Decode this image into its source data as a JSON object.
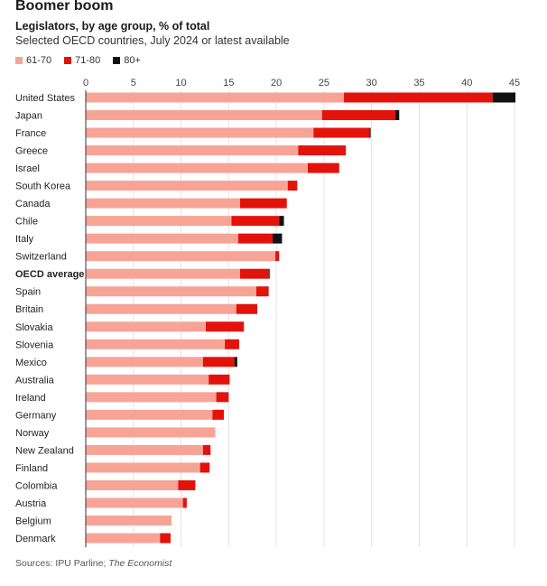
{
  "title": "Boomer boom",
  "subtitle": "Legislators, by age group, % of total",
  "subtitle2": "Selected OECD countries, July 2024 or latest available",
  "source_prefix": "Sources: IPU Parline; ",
  "source_italic": "The Economist",
  "colors": {
    "61-70": "#f7a497",
    "71-80": "#e3120b",
    "80+": "#111111"
  },
  "chart_data": {
    "type": "bar",
    "orientation": "horizontal",
    "stacked": true,
    "title": "Legislators, by age group, % of total",
    "xlabel": "",
    "ylabel": "",
    "xlim": [
      0,
      45
    ],
    "xticks": [
      "0",
      "5",
      "10",
      "15",
      "20",
      "25",
      "30",
      "35",
      "40",
      "45"
    ],
    "grid": true,
    "legend_placement": "top-left",
    "legend": [
      "61-70",
      "71-80",
      "80+"
    ],
    "categories": [
      "United States",
      "Japan",
      "France",
      "Greece",
      "Israel",
      "South Korea",
      "Canada",
      "Chile",
      "Italy",
      "Switzerland",
      "OECD average",
      "Spain",
      "Britain",
      "Slovakia",
      "Slovenia",
      "Mexico",
      "Australia",
      "Ireland",
      "Germany",
      "Norway",
      "New Zealand",
      "Finland",
      "Colombia",
      "Austria",
      "Belgium",
      "Denmark"
    ],
    "highlight": "OECD average",
    "series": [
      {
        "name": "61-70",
        "values": [
          27.1,
          24.8,
          23.9,
          22.3,
          23.3,
          21.2,
          16.2,
          15.3,
          16.0,
          19.9,
          16.2,
          17.9,
          15.8,
          12.6,
          14.6,
          12.3,
          12.9,
          13.7,
          13.3,
          13.6,
          12.3,
          12.0,
          9.7,
          10.2,
          9.0,
          7.8
        ]
      },
      {
        "name": "71-80",
        "values": [
          15.6,
          7.7,
          5.9,
          5.0,
          3.3,
          1.0,
          4.9,
          5.0,
          3.6,
          0.4,
          3.0,
          1.3,
          2.2,
          4.0,
          1.5,
          3.3,
          2.2,
          1.3,
          1.2,
          0,
          0.8,
          1.0,
          1.8,
          0.4,
          0,
          1.1
        ]
      },
      {
        "name": "80+",
        "values": [
          2.4,
          0.4,
          0.1,
          0,
          0,
          0,
          0,
          0.5,
          1.0,
          0,
          0.1,
          0,
          0,
          0,
          0,
          0.3,
          0,
          0,
          0,
          0,
          0,
          0,
          0,
          0,
          0,
          0
        ]
      }
    ]
  }
}
